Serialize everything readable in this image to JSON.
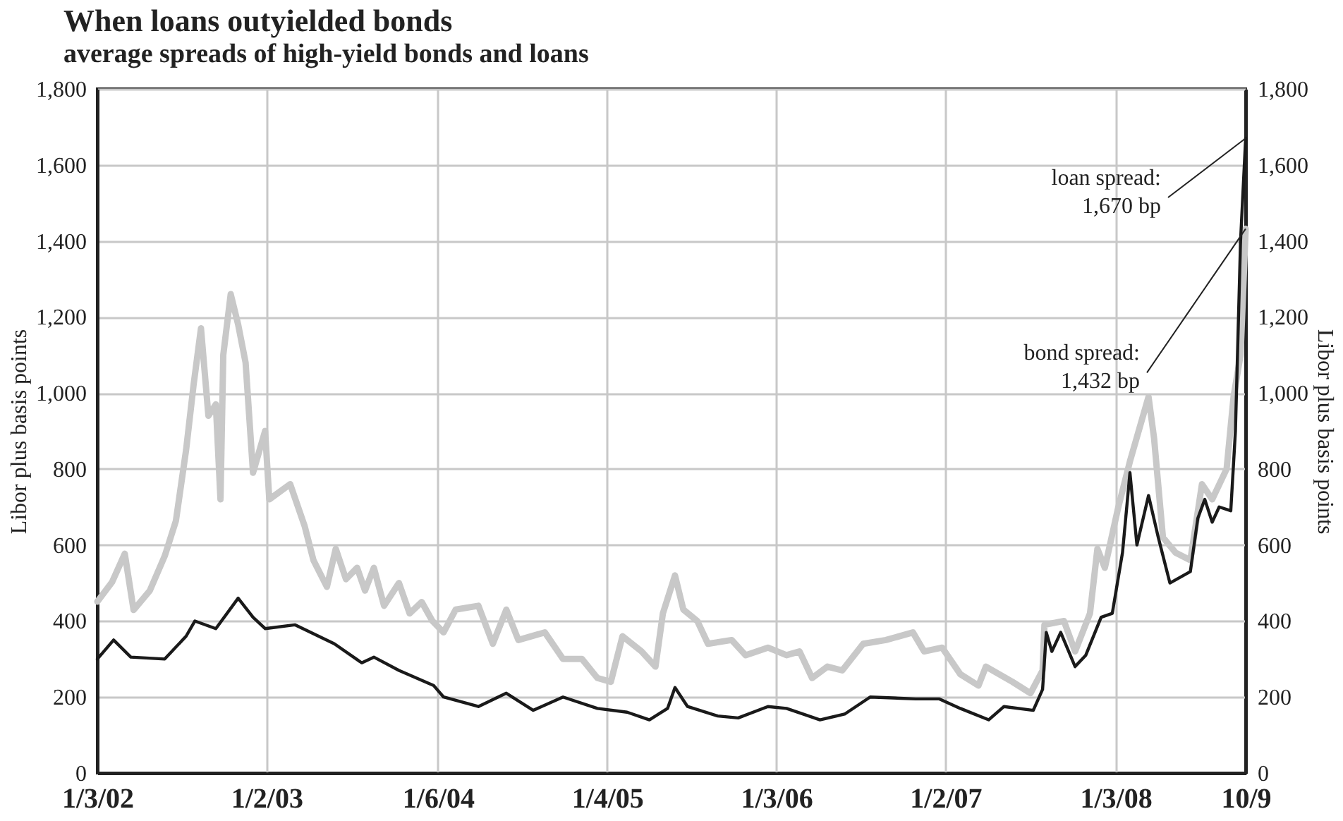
{
  "chart_data": {
    "type": "line",
    "title": "When loans outyielded bonds",
    "subtitle": "average spreads of high-yield bonds and loans",
    "ylabel": "Libor plus basis points",
    "y2label": "Libor plus basis points",
    "xlim": [
      "2002-01-03",
      "2008-10-09"
    ],
    "xticks": [
      {
        "value": "2002-01-03",
        "label": "1/3/02"
      },
      {
        "value": "2003-01-02",
        "label": "1/2/03"
      },
      {
        "value": "2004-01-06",
        "label": "1/6/04"
      },
      {
        "value": "2005-01-04",
        "label": "1/4/05"
      },
      {
        "value": "2006-01-03",
        "label": "1/3/06"
      },
      {
        "value": "2007-01-02",
        "label": "1/2/07"
      },
      {
        "value": "2008-01-03",
        "label": "1/3/08"
      },
      {
        "value": "2008-10-09",
        "label": "10/9"
      }
    ],
    "ylim": [
      0,
      1800
    ],
    "yticks": [
      {
        "value": 0,
        "label": "0"
      },
      {
        "value": 200,
        "label": "200"
      },
      {
        "value": 400,
        "label": "400"
      },
      {
        "value": 600,
        "label": "600"
      },
      {
        "value": 800,
        "label": "800"
      },
      {
        "value": 1000,
        "label": "1,000"
      },
      {
        "value": 1200,
        "label": "1,200"
      },
      {
        "value": 1400,
        "label": "1,400"
      },
      {
        "value": 1600,
        "label": "1,600"
      },
      {
        "value": 1800,
        "label": "1,800"
      }
    ],
    "y2lim": [
      0,
      1800
    ],
    "y2ticks": [
      {
        "value": 0,
        "label": "0"
      },
      {
        "value": 200,
        "label": "200"
      },
      {
        "value": 400,
        "label": "400"
      },
      {
        "value": 600,
        "label": "600"
      },
      {
        "value": 800,
        "label": "800"
      },
      {
        "value": 1000,
        "label": "1,000"
      },
      {
        "value": 1200,
        "label": "1,200"
      },
      {
        "value": 1400,
        "label": "1,400"
      },
      {
        "value": 1600,
        "label": "1,600"
      },
      {
        "value": 1800,
        "label": "1,800"
      }
    ],
    "grid": true,
    "legend": false,
    "marker": "none",
    "line_style": "solid",
    "series": [
      {
        "color": "#c8c8c8",
        "x": [
          "2002-01-03",
          "2002-02-04",
          "2002-03-03",
          "2002-03-22",
          "2002-04-26",
          "2002-05-28",
          "2002-06-21",
          "2002-07-13",
          "2002-07-29",
          "2002-08-14",
          "2002-08-30",
          "2002-09-15",
          "2002-09-25",
          "2002-10-01",
          "2002-10-17",
          "2002-11-02",
          "2002-11-18",
          "2002-12-04",
          "2002-12-30",
          "2003-01-08",
          "2003-02-22",
          "2003-03-25",
          "2003-04-13",
          "2003-05-12",
          "2003-05-31",
          "2003-06-22",
          "2003-07-16",
          "2003-08-02",
          "2003-08-21",
          "2003-09-12",
          "2003-10-14",
          "2003-11-06",
          "2003-12-02",
          "2003-12-25",
          "2004-01-18",
          "2004-02-13",
          "2004-04-02",
          "2004-05-03",
          "2004-06-01",
          "2004-06-27",
          "2004-08-23",
          "2004-10-01",
          "2004-11-11",
          "2004-12-14",
          "2005-01-12",
          "2005-02-06",
          "2005-03-19",
          "2005-04-18",
          "2005-05-04",
          "2005-05-30",
          "2005-06-17",
          "2005-07-17",
          "2005-08-09",
          "2005-09-29",
          "2005-10-29",
          "2005-12-16",
          "2006-01-25",
          "2006-02-22",
          "2006-03-21",
          "2006-04-23",
          "2006-05-25",
          "2006-07-09",
          "2006-08-27",
          "2006-10-24",
          "2006-11-17",
          "2006-12-26",
          "2007-02-03",
          "2007-03-14",
          "2007-03-30",
          "2007-05-26",
          "2007-07-04",
          "2007-07-30",
          "2007-08-03",
          "2007-09-14",
          "2007-10-08",
          "2007-11-09",
          "2007-11-25",
          "2007-12-11",
          "2008-01-09",
          "2008-02-03",
          "2008-03-14",
          "2008-03-26",
          "2008-04-14",
          "2008-05-11",
          "2008-06-12",
          "2008-07-07",
          "2008-07-29",
          "2008-08-29",
          "2008-09-13",
          "2008-09-28",
          "2008-10-09"
        ],
        "values": [
          451,
          503,
          577,
          429,
          480,
          571,
          663,
          850,
          1020,
          1170,
          940,
          970,
          720,
          1100,
          1260,
          1180,
          1080,
          790,
          900,
          720,
          760,
          650,
          560,
          490,
          590,
          510,
          540,
          480,
          540,
          440,
          500,
          420,
          450,
          400,
          370,
          430,
          440,
          340,
          430,
          350,
          370,
          300,
          300,
          250,
          240,
          360,
          320,
          280,
          420,
          520,
          430,
          400,
          340,
          350,
          310,
          330,
          310,
          320,
          250,
          280,
          270,
          340,
          350,
          370,
          320,
          330,
          260,
          230,
          280,
          240,
          210,
          270,
          390,
          400,
          320,
          420,
          590,
          540,
          700,
          820,
          990,
          880,
          620,
          580,
          560,
          760,
          720,
          800,
          990,
          1100,
          1432
        ]
      },
      {
        "color": "#1a1a1a",
        "x": [
          "2002-01-03",
          "2002-02-07",
          "2002-03-16",
          "2002-05-28",
          "2002-07-13",
          "2002-08-01",
          "2002-09-15",
          "2002-11-02",
          "2002-12-04",
          "2002-12-30",
          "2003-03-04",
          "2003-05-28",
          "2003-07-26",
          "2003-08-21",
          "2003-10-14",
          "2003-12-28",
          "2004-01-18",
          "2004-04-02",
          "2004-06-01",
          "2004-07-29",
          "2004-10-01",
          "2004-12-14",
          "2005-02-16",
          "2005-04-05",
          "2005-05-14",
          "2005-05-30",
          "2005-06-26",
          "2005-08-30",
          "2005-10-13",
          "2005-12-16",
          "2006-01-25",
          "2006-04-07",
          "2006-05-30",
          "2006-07-24",
          "2006-10-30",
          "2006-12-20",
          "2007-02-03",
          "2007-04-05",
          "2007-05-08",
          "2007-07-10",
          "2007-07-30",
          "2007-08-07",
          "2007-08-19",
          "2007-09-07",
          "2007-10-08",
          "2007-10-31",
          "2007-12-03",
          "2007-12-27",
          "2008-01-18",
          "2008-02-03",
          "2008-02-18",
          "2008-03-14",
          "2008-04-04",
          "2008-04-29",
          "2008-06-12",
          "2008-06-28",
          "2008-07-13",
          "2008-07-29",
          "2008-08-13",
          "2008-09-07",
          "2008-09-17",
          "2008-09-28",
          "2008-10-09"
        ],
        "values": [
          300,
          350,
          305,
          300,
          360,
          400,
          380,
          460,
          410,
          380,
          390,
          340,
          290,
          305,
          270,
          230,
          200,
          175,
          210,
          165,
          200,
          170,
          160,
          140,
          170,
          225,
          175,
          150,
          145,
          175,
          170,
          140,
          155,
          200,
          195,
          195,
          170,
          140,
          175,
          165,
          220,
          370,
          320,
          370,
          280,
          310,
          410,
          420,
          580,
          790,
          600,
          730,
          620,
          500,
          530,
          670,
          720,
          660,
          700,
          690,
          900,
          1400,
          1670
        ]
      }
    ],
    "annotations": [
      {
        "text": "loan spread:\n1,670 bp",
        "x": "2008-10-09",
        "y": 1670
      },
      {
        "text": "bond spread:\n1,432 bp",
        "x": "2008-10-09",
        "y": 1432
      }
    ]
  }
}
